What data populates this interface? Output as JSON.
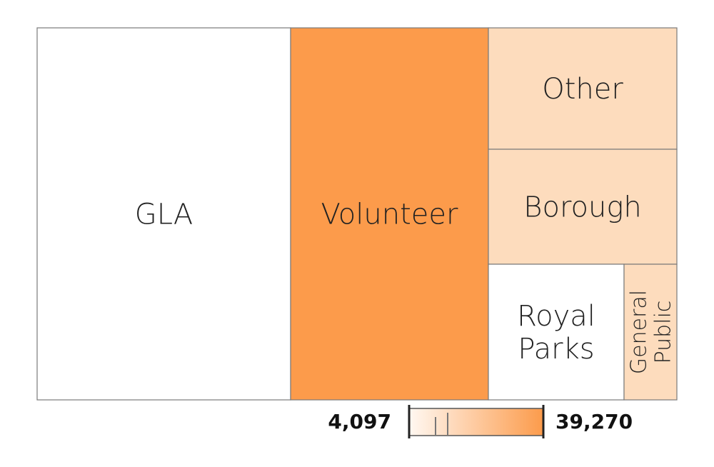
{
  "chart_data": {
    "type": "treemap",
    "title": "",
    "cells": [
      {
        "name": "GLA",
        "label_lines": [
          "GLA"
        ],
        "color": "#ffffff"
      },
      {
        "name": "Volunteer",
        "label_lines": [
          "Volunteer"
        ],
        "color": "#fc9b4b"
      },
      {
        "name": "Other",
        "label_lines": [
          "Other"
        ],
        "color": "#fddcbd"
      },
      {
        "name": "Borough",
        "label_lines": [
          "Borough"
        ],
        "color": "#fddcbd"
      },
      {
        "name": "Royal Parks",
        "label_lines": [
          "Royal",
          "Parks"
        ],
        "color": "#ffffff"
      },
      {
        "name": "General Public",
        "label_lines": [
          "General",
          "Public"
        ],
        "color": "#fddcbd"
      }
    ],
    "color_scale": {
      "min": 4097,
      "max": 39270,
      "min_label": "4,097",
      "max_label": "39,270",
      "color_low": "#fff8f2",
      "color_high": "#fc9b4b"
    }
  }
}
